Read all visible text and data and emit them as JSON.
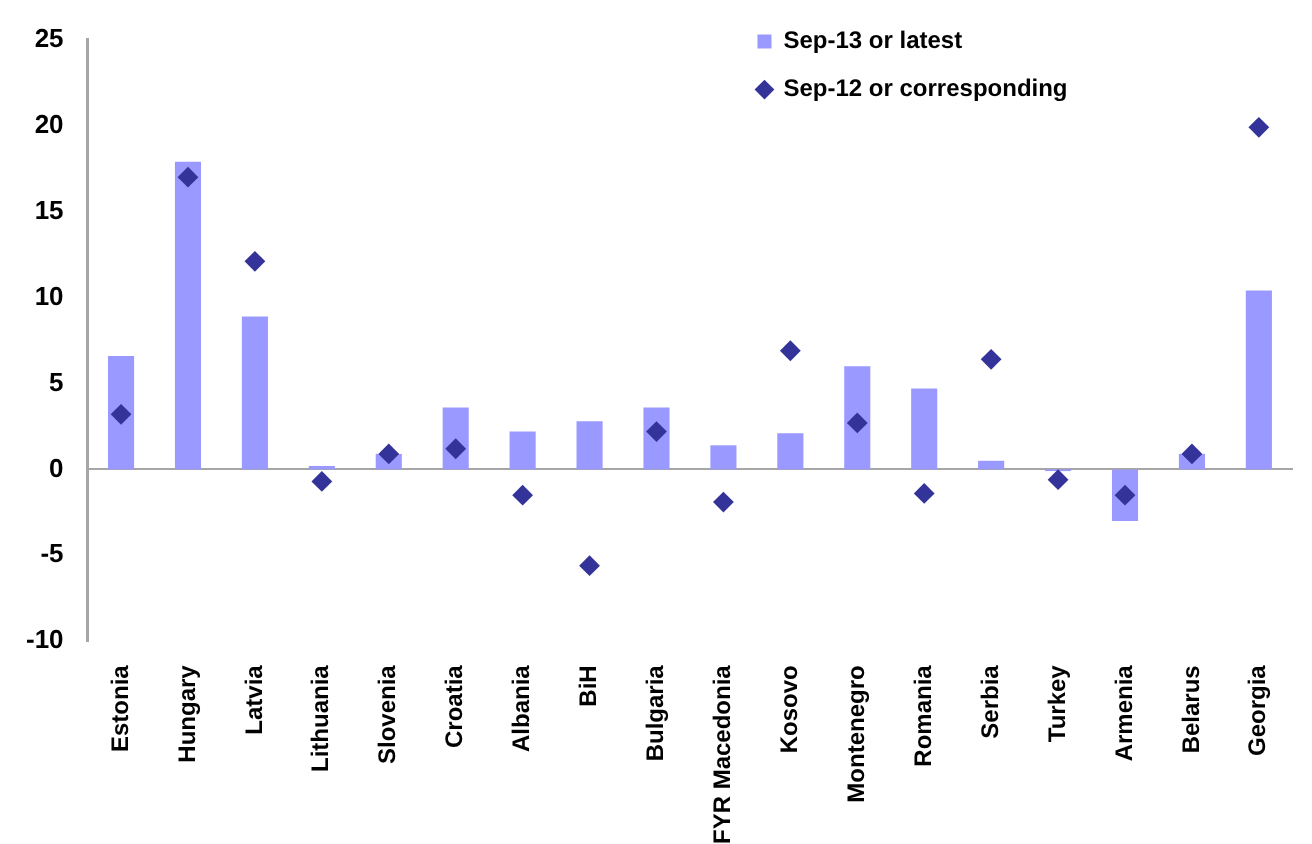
{
  "chart_data": {
    "type": "bar",
    "categories": [
      "Estonia",
      "Hungary",
      "Latvia",
      "Lithuania",
      "Slovenia",
      "Croatia",
      "Albania",
      "BiH",
      "Bulgaria",
      "FYR Macedonia",
      "Kosovo",
      "Montenegro",
      "Romania",
      "Serbia",
      "Turkey",
      "Armenia",
      "Belarus",
      "Georgia"
    ],
    "series": [
      {
        "name": "Sep-13 or latest",
        "color": "#9999ff",
        "values": [
          6.6,
          17.9,
          8.9,
          0.2,
          0.9,
          3.6,
          2.2,
          2.8,
          3.6,
          1.4,
          2.1,
          6.0,
          4.7,
          0.5,
          -0.1,
          -3.0,
          0.9,
          10.4
        ]
      },
      {
        "name": "Sep-12 or corresponding",
        "type": "scatter",
        "color": "#333399",
        "values": [
          3.2,
          17.0,
          12.1,
          -0.7,
          0.9,
          1.2,
          -1.5,
          -5.6,
          2.2,
          -1.9,
          6.9,
          2.7,
          -1.4,
          6.4,
          -0.6,
          -1.5,
          0.9,
          19.9
        ]
      }
    ],
    "ylim": [
      -10,
      25
    ],
    "yticks": [
      -10,
      -5,
      0,
      5,
      10,
      15,
      20,
      25
    ],
    "marker": "diamond",
    "legend": "top right"
  }
}
